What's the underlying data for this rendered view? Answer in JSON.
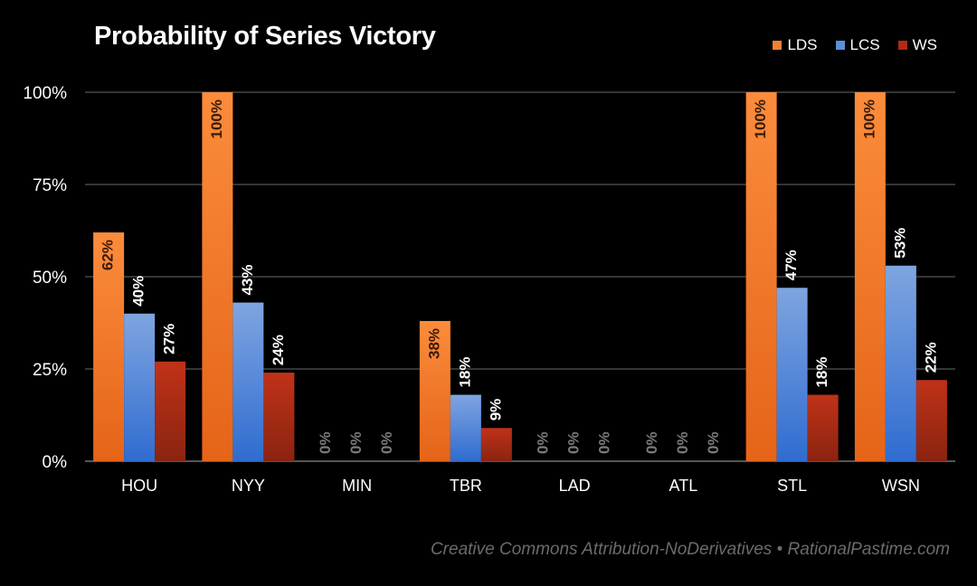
{
  "chart_data": {
    "type": "bar",
    "title": "Probability of Series Victory",
    "categories": [
      "HOU",
      "NYY",
      "MIN",
      "TBR",
      "LAD",
      "ATL",
      "STL",
      "WSN"
    ],
    "series": [
      {
        "name": "LDS",
        "color": "#f08030",
        "values": [
          62,
          100,
          0,
          38,
          0,
          0,
          100,
          100
        ],
        "labels": [
          "62%",
          "100%",
          "0%",
          "38%",
          "0%",
          "0%",
          "100%",
          "100%"
        ]
      },
      {
        "name": "LCS",
        "color": "#5b8fd6",
        "values": [
          40,
          43,
          0,
          18,
          0,
          0,
          47,
          53
        ],
        "labels": [
          "40%",
          "43%",
          "0%",
          "18%",
          "0%",
          "0%",
          "47%",
          "53%"
        ]
      },
      {
        "name": "WS",
        "color": "#b02a14",
        "values": [
          27,
          24,
          0,
          9,
          0,
          0,
          18,
          22
        ],
        "labels": [
          "27%",
          "24%",
          "0%",
          "9%",
          "0%",
          "0%",
          "18%",
          "22%"
        ]
      }
    ],
    "ylim": [
      0,
      100
    ],
    "yticks": [
      0,
      25,
      50,
      75,
      100
    ],
    "ytick_labels": [
      "0%",
      "25%",
      "50%",
      "75%",
      "100%"
    ],
    "grid": true,
    "legend_position": "top-right"
  },
  "credit": "Creative Commons Attribution-NoDerivatives • RationalPastime.com"
}
